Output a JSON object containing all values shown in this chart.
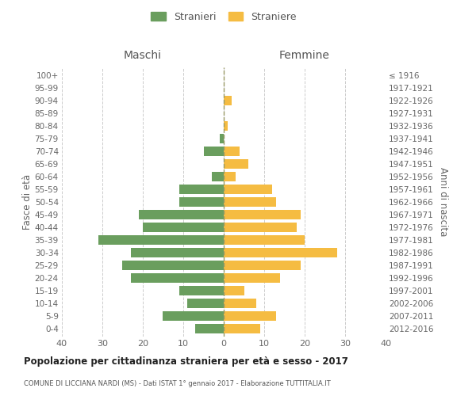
{
  "age_groups": [
    "0-4",
    "5-9",
    "10-14",
    "15-19",
    "20-24",
    "25-29",
    "30-34",
    "35-39",
    "40-44",
    "45-49",
    "50-54",
    "55-59",
    "60-64",
    "65-69",
    "70-74",
    "75-79",
    "80-84",
    "85-89",
    "90-94",
    "95-99",
    "100+"
  ],
  "birth_years": [
    "2012-2016",
    "2007-2011",
    "2002-2006",
    "1997-2001",
    "1992-1996",
    "1987-1991",
    "1982-1986",
    "1977-1981",
    "1972-1976",
    "1967-1971",
    "1962-1966",
    "1957-1961",
    "1952-1956",
    "1947-1951",
    "1942-1946",
    "1937-1941",
    "1932-1936",
    "1927-1931",
    "1922-1926",
    "1917-1921",
    "≤ 1916"
  ],
  "males": [
    7,
    15,
    9,
    11,
    23,
    25,
    23,
    31,
    20,
    21,
    11,
    11,
    3,
    0,
    5,
    1,
    0,
    0,
    0,
    0,
    0
  ],
  "females": [
    9,
    13,
    8,
    5,
    14,
    19,
    28,
    20,
    18,
    19,
    13,
    12,
    3,
    6,
    4,
    0,
    1,
    0,
    2,
    0,
    0
  ],
  "male_color": "#6a9e5e",
  "female_color": "#f5bc42",
  "background_color": "#ffffff",
  "grid_color": "#cccccc",
  "center_line_color": "#999966",
  "title": "Popolazione per cittadinanza straniera per età e sesso - 2017",
  "subtitle": "COMUNE DI LICCIANA NARDI (MS) - Dati ISTAT 1° gennaio 2017 - Elaborazione TUTTITALIA.IT",
  "ylabel_left": "Fasce di età",
  "ylabel_right": "Anni di nascita",
  "xlabel_maschi": "Maschi",
  "xlabel_femmine": "Femmine",
  "legend_male": "Stranieri",
  "legend_female": "Straniere",
  "xlim": 40,
  "bar_height": 0.75
}
